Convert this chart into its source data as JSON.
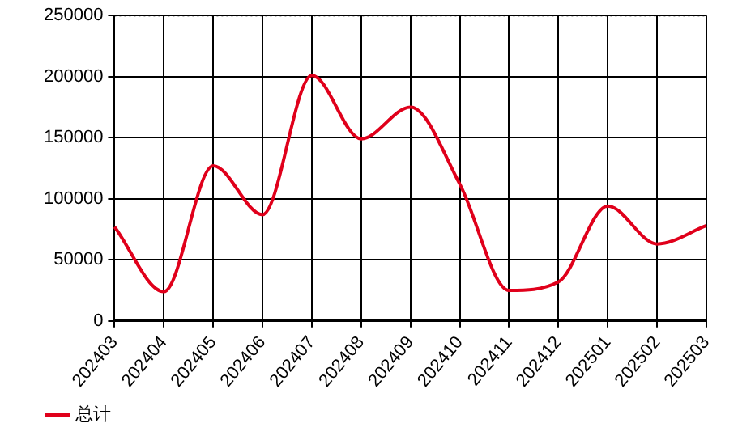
{
  "chart_data": {
    "type": "line",
    "categories": [
      "202403",
      "202404",
      "202405",
      "202406",
      "202407",
      "202408",
      "202409",
      "202410",
      "202411",
      "202412",
      "202501",
      "202502",
      "202503"
    ],
    "series": [
      {
        "name": "总计",
        "color": "#e0001b",
        "values": [
          77000,
          24000,
          127000,
          87000,
          201000,
          149000,
          175000,
          112000,
          25000,
          32000,
          94000,
          63000,
          78000
        ]
      }
    ],
    "ylim": [
      0,
      250000
    ],
    "yticks": [
      0,
      50000,
      100000,
      150000,
      200000,
      250000
    ],
    "grid": true,
    "legend": "bottom left",
    "marker": "none",
    "line_style": "solid"
  }
}
